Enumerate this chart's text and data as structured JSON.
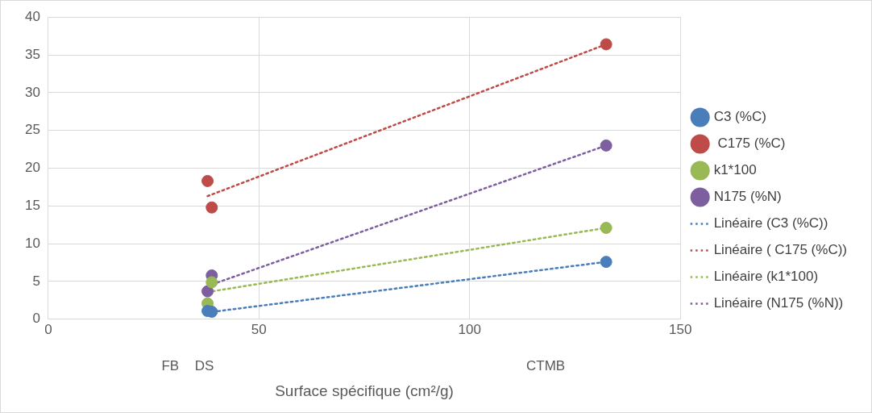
{
  "chart_data": {
    "type": "scatter",
    "xlabel": "Surface spécifique (cm²/g)",
    "xlim": [
      0,
      150
    ],
    "xticks": [
      0,
      50,
      100,
      150
    ],
    "ylim": [
      0,
      40
    ],
    "yticks": [
      0,
      5,
      10,
      15,
      20,
      25,
      30,
      35,
      40
    ],
    "grid": true,
    "legend": "right",
    "marker": "circle",
    "series": [
      {
        "name": "C3 (%C)",
        "color": "#4a7ebb",
        "x": [
          37.8,
          38.8,
          132.4
        ],
        "values": [
          1.1,
          1.0,
          7.6
        ]
      },
      {
        "name": " C175 (%C)",
        "color": "#be4b48",
        "x": [
          37.8,
          38.8,
          132.4
        ],
        "values": [
          18.3,
          14.8,
          36.4
        ]
      },
      {
        "name": "k1*100",
        "color": "#98b954",
        "x": [
          37.8,
          38.8,
          132.4
        ],
        "values": [
          2.1,
          4.9,
          12.1
        ]
      },
      {
        "name": "N175 (%N)",
        "color": "#7d5fa0",
        "x": [
          37.8,
          38.8,
          132.4
        ],
        "values": [
          3.7,
          5.8,
          23.0
        ]
      },
      {
        "name": "Linéaire (C3 (%C))",
        "type": "line",
        "line_style": "dotted",
        "marker": "none",
        "color": "#4a7ebb",
        "x": [
          37.8,
          132.4
        ],
        "values": [
          0.9,
          7.6
        ]
      },
      {
        "name": "Linéaire ( C175 (%C))",
        "type": "line",
        "line_style": "dotted",
        "marker": "none",
        "color": "#be4b48",
        "x": [
          37.8,
          132.4
        ],
        "values": [
          16.3,
          36.4
        ]
      },
      {
        "name": "Linéaire (k1*100)",
        "type": "line",
        "line_style": "dotted",
        "marker": "none",
        "color": "#98b954",
        "x": [
          37.8,
          132.4
        ],
        "values": [
          3.6,
          12.1
        ]
      },
      {
        "name": "Linéaire (N175 (%N))",
        "type": "line",
        "line_style": "dotted",
        "marker": "none",
        "color": "#7d5fa0",
        "x": [
          37.8,
          132.4
        ],
        "values": [
          4.4,
          23.0
        ]
      }
    ],
    "annotations": [
      "FB",
      "DS",
      "CTMB"
    ]
  }
}
